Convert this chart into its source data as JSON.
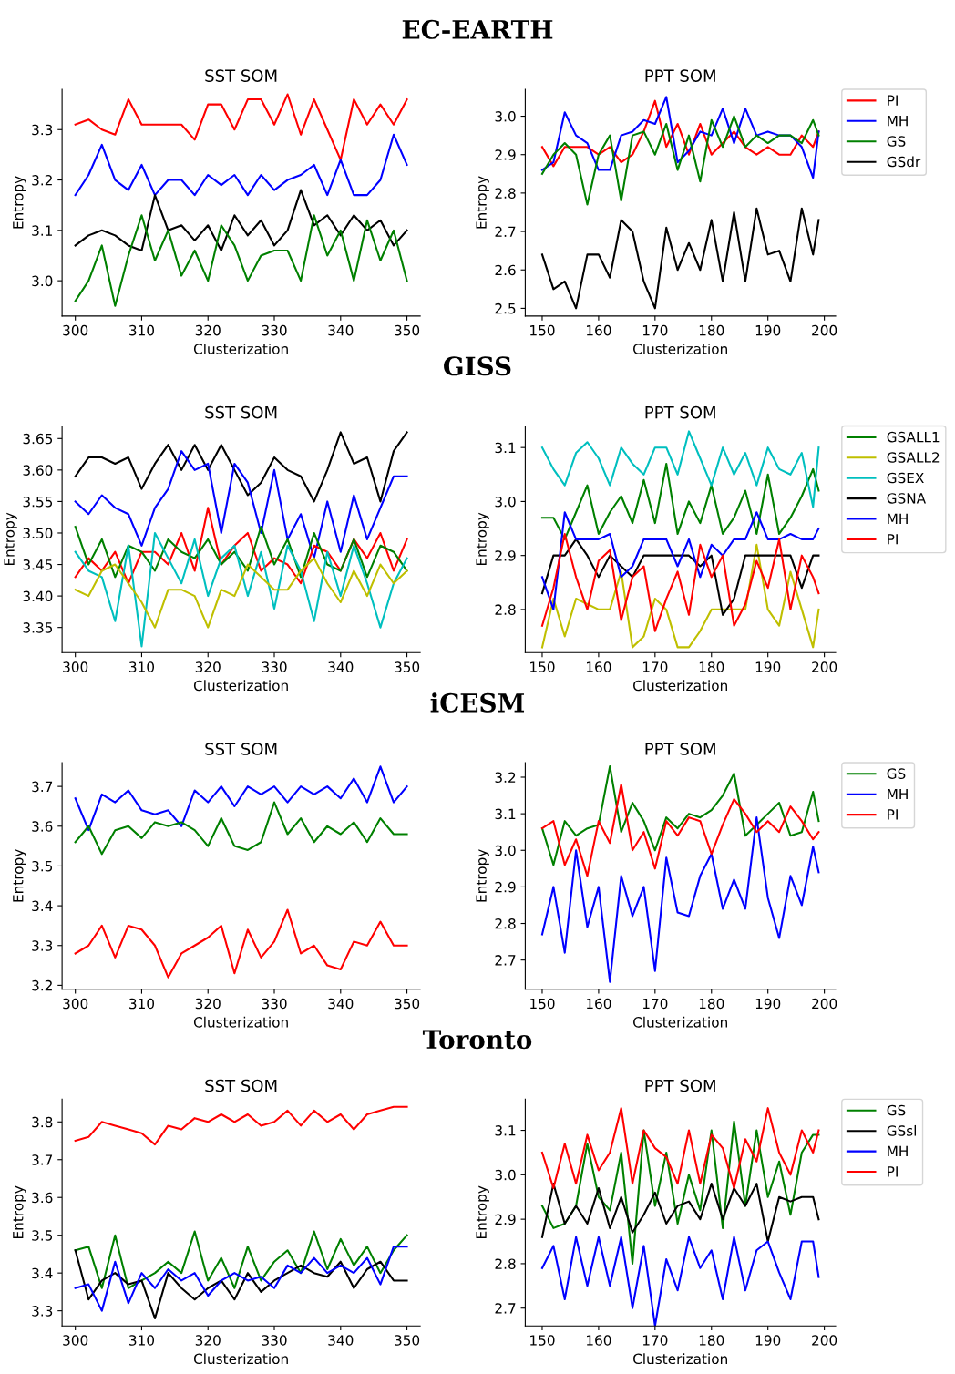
{
  "chart_data": [
    {
      "type": "line",
      "title": "SST SOM",
      "xlabel": "Clusterization",
      "ylabel": "Entropy",
      "annotations": [
        "EC-EARTH"
      ],
      "x": [
        300,
        302,
        304,
        306,
        308,
        310,
        312,
        314,
        316,
        318,
        320,
        322,
        324,
        326,
        328,
        330,
        332,
        334,
        336,
        338,
        340,
        342,
        344,
        346,
        348,
        350
      ],
      "xlim": [
        298,
        352
      ],
      "xticks": [
        300,
        310,
        320,
        330,
        340,
        350
      ],
      "ylim": [
        2.93,
        3.38
      ],
      "yticks": [
        {
          "value": 3.0,
          "label": "3.0"
        },
        3.1,
        3.2,
        3.3
      ],
      "grid": false,
      "legend": false,
      "series": [
        {
          "color": "#ff0000",
          "values": [
            3.31,
            3.32,
            3.3,
            3.29,
            3.36,
            3.31,
            3.31,
            3.31,
            3.31,
            3.28,
            3.35,
            3.35,
            3.3,
            3.36,
            3.36,
            3.31,
            3.37,
            3.29,
            3.36,
            3.3,
            3.24,
            3.36,
            3.31,
            3.35,
            3.31,
            3.36
          ]
        },
        {
          "color": "#0000ff",
          "values": [
            3.17,
            3.21,
            3.27,
            3.2,
            3.18,
            3.23,
            3.17,
            3.2,
            3.2,
            3.17,
            3.21,
            3.19,
            3.21,
            3.17,
            3.21,
            3.18,
            3.2,
            3.21,
            3.23,
            3.17,
            3.24,
            3.17,
            3.17,
            3.2,
            3.29,
            3.23
          ]
        },
        {
          "color": "#000000",
          "values": [
            3.07,
            3.09,
            3.1,
            3.09,
            3.07,
            3.06,
            3.17,
            3.1,
            3.11,
            3.08,
            3.11,
            3.06,
            3.13,
            3.09,
            3.12,
            3.07,
            3.1,
            3.18,
            3.11,
            3.13,
            3.09,
            3.13,
            3.1,
            3.12,
            3.07,
            3.1
          ]
        },
        {
          "color": "#008000",
          "values": [
            2.96,
            3.0,
            3.07,
            2.95,
            3.05,
            3.13,
            3.04,
            3.1,
            3.01,
            3.06,
            3.0,
            3.11,
            3.07,
            3.0,
            3.05,
            3.06,
            3.06,
            3.0,
            3.13,
            3.05,
            3.1,
            3.0,
            3.12,
            3.04,
            3.1,
            3.0
          ]
        }
      ]
    },
    {
      "type": "line",
      "title": "PPT SOM",
      "xlabel": "Clusterization",
      "ylabel": "Entropy",
      "x": [
        150,
        152,
        154,
        156,
        158,
        160,
        162,
        164,
        166,
        168,
        170,
        172,
        174,
        176,
        178,
        180,
        182,
        184,
        186,
        188,
        190,
        192,
        194,
        196,
        198,
        199
      ],
      "xlim": [
        147,
        202
      ],
      "xticks": [
        150,
        160,
        170,
        180,
        190,
        200
      ],
      "ylim": [
        2.48,
        3.07
      ],
      "yticks": [
        2.5,
        2.6,
        2.7,
        2.8,
        2.9,
        {
          "value": 3.0,
          "label": "3.0"
        }
      ],
      "grid": false,
      "legend": "right",
      "series": [
        {
          "name": "PI",
          "color": "#ff0000",
          "values": [
            2.92,
            2.87,
            2.92,
            2.92,
            2.92,
            2.9,
            2.92,
            2.88,
            2.9,
            2.96,
            3.04,
            2.92,
            2.98,
            2.9,
            2.98,
            2.9,
            2.93,
            2.96,
            2.92,
            2.9,
            2.92,
            2.9,
            2.9,
            2.95,
            2.92,
            2.96
          ]
        },
        {
          "name": "MH",
          "color": "#0000ff",
          "values": [
            2.86,
            2.88,
            3.01,
            2.95,
            2.93,
            2.86,
            2.86,
            2.95,
            2.96,
            2.99,
            2.98,
            3.05,
            2.88,
            2.91,
            2.96,
            2.95,
            3.02,
            2.93,
            3.02,
            2.95,
            2.96,
            2.95,
            2.95,
            2.92,
            2.84,
            2.96
          ]
        },
        {
          "name": "GS",
          "color": "#008000",
          "values": [
            2.85,
            2.9,
            2.93,
            2.9,
            2.77,
            2.9,
            2.95,
            2.78,
            2.95,
            2.96,
            2.9,
            2.98,
            2.86,
            2.95,
            2.83,
            2.99,
            2.92,
            3.0,
            2.92,
            2.95,
            2.93,
            2.95,
            2.95,
            2.93,
            2.99,
            2.95
          ]
        },
        {
          "name": "GSdr",
          "color": "#000000",
          "values": [
            2.64,
            2.55,
            2.57,
            2.5,
            2.64,
            2.64,
            2.58,
            2.73,
            2.7,
            2.57,
            2.5,
            2.71,
            2.6,
            2.67,
            2.6,
            2.73,
            2.57,
            2.75,
            2.57,
            2.76,
            2.64,
            2.65,
            2.57,
            2.76,
            2.64,
            2.73
          ]
        }
      ]
    },
    {
      "type": "line",
      "title": "SST SOM",
      "xlabel": "Clusterization",
      "ylabel": "Entropy",
      "annotations": [
        "GISS"
      ],
      "x": [
        300,
        302,
        304,
        306,
        308,
        310,
        312,
        314,
        316,
        318,
        320,
        322,
        324,
        326,
        328,
        330,
        332,
        334,
        336,
        338,
        340,
        342,
        344,
        346,
        348,
        350
      ],
      "xlim": [
        298,
        352
      ],
      "xticks": [
        300,
        310,
        320,
        330,
        340,
        350
      ],
      "ylim": [
        3.31,
        3.67
      ],
      "yticks": [
        3.35,
        {
          "value": 3.4,
          "label": "3.40"
        },
        3.45,
        {
          "value": 3.5,
          "label": "3.50"
        },
        3.55,
        {
          "value": 3.6,
          "label": "3.60"
        },
        3.65
      ],
      "grid": false,
      "legend": false,
      "series": [
        {
          "color": "#000000",
          "values": [
            3.59,
            3.62,
            3.62,
            3.61,
            3.62,
            3.57,
            3.61,
            3.64,
            3.6,
            3.64,
            3.6,
            3.64,
            3.6,
            3.56,
            3.58,
            3.62,
            3.6,
            3.59,
            3.55,
            3.6,
            3.66,
            3.61,
            3.62,
            3.55,
            3.63,
            3.66
          ]
        },
        {
          "color": "#0000ff",
          "values": [
            3.55,
            3.53,
            3.56,
            3.54,
            3.53,
            3.48,
            3.54,
            3.57,
            3.63,
            3.6,
            3.61,
            3.5,
            3.61,
            3.58,
            3.5,
            3.6,
            3.49,
            3.53,
            3.46,
            3.55,
            3.47,
            3.56,
            3.49,
            3.54,
            3.59,
            3.59
          ]
        },
        {
          "color": "#ff0000",
          "values": [
            3.43,
            3.46,
            3.44,
            3.47,
            3.42,
            3.47,
            3.47,
            3.45,
            3.5,
            3.44,
            3.54,
            3.45,
            3.48,
            3.5,
            3.44,
            3.46,
            3.45,
            3.42,
            3.48,
            3.47,
            3.44,
            3.49,
            3.46,
            3.5,
            3.44,
            3.49
          ]
        },
        {
          "color": "#008000",
          "values": [
            3.51,
            3.45,
            3.49,
            3.43,
            3.48,
            3.47,
            3.44,
            3.49,
            3.47,
            3.46,
            3.49,
            3.45,
            3.47,
            3.44,
            3.51,
            3.45,
            3.49,
            3.43,
            3.5,
            3.45,
            3.44,
            3.49,
            3.43,
            3.48,
            3.47,
            3.44
          ]
        },
        {
          "color": "#00bfbf",
          "values": [
            3.47,
            3.44,
            3.43,
            3.36,
            3.48,
            3.32,
            3.5,
            3.46,
            3.42,
            3.49,
            3.4,
            3.46,
            3.48,
            3.4,
            3.47,
            3.38,
            3.48,
            3.44,
            3.36,
            3.47,
            3.4,
            3.48,
            3.42,
            3.35,
            3.42,
            3.46
          ]
        },
        {
          "color": "#bfbf00",
          "values": [
            3.41,
            3.4,
            3.44,
            3.45,
            3.42,
            3.39,
            3.35,
            3.41,
            3.41,
            3.4,
            3.35,
            3.41,
            3.4,
            3.45,
            3.43,
            3.41,
            3.41,
            3.44,
            3.46,
            3.42,
            3.39,
            3.44,
            3.4,
            3.45,
            3.42,
            3.44
          ]
        }
      ]
    },
    {
      "type": "line",
      "title": "PPT SOM",
      "xlabel": "Clusterization",
      "ylabel": "Entropy",
      "x": [
        150,
        152,
        154,
        156,
        158,
        160,
        162,
        164,
        166,
        168,
        170,
        172,
        174,
        176,
        178,
        180,
        182,
        184,
        186,
        188,
        190,
        192,
        194,
        196,
        198,
        199
      ],
      "xlim": [
        147,
        202
      ],
      "xticks": [
        150,
        160,
        170,
        180,
        190,
        200
      ],
      "ylim": [
        2.72,
        3.14
      ],
      "yticks": [
        2.8,
        2.9,
        {
          "value": 3.0,
          "label": "3.0"
        },
        3.1
      ],
      "grid": false,
      "legend": "right",
      "series": [
        {
          "name": "GSALL1",
          "color": "#008000",
          "values": [
            2.97,
            2.97,
            2.93,
            2.98,
            3.03,
            2.94,
            2.98,
            3.01,
            2.96,
            3.04,
            2.96,
            3.07,
            2.94,
            3.0,
            2.96,
            3.03,
            2.94,
            2.97,
            3.02,
            2.94,
            3.05,
            2.94,
            2.97,
            3.01,
            3.06,
            3.02
          ]
        },
        {
          "name": "GSALL2",
          "color": "#bfbf00",
          "values": [
            2.73,
            2.82,
            2.75,
            2.82,
            2.81,
            2.8,
            2.8,
            2.87,
            2.73,
            2.75,
            2.82,
            2.8,
            2.73,
            2.73,
            2.76,
            2.8,
            2.8,
            2.8,
            2.8,
            2.92,
            2.8,
            2.77,
            2.87,
            2.8,
            2.73,
            2.8
          ]
        },
        {
          "name": "GSEX",
          "color": "#00bfbf",
          "values": [
            3.1,
            3.06,
            3.03,
            3.09,
            3.11,
            3.08,
            3.03,
            3.1,
            3.07,
            3.05,
            3.1,
            3.1,
            3.05,
            3.13,
            3.08,
            3.03,
            3.1,
            3.05,
            3.09,
            3.03,
            3.1,
            3.06,
            3.05,
            3.09,
            2.99,
            3.1
          ]
        },
        {
          "name": "GSNA",
          "color": "#000000",
          "values": [
            2.83,
            2.9,
            2.9,
            2.93,
            2.9,
            2.86,
            2.9,
            2.88,
            2.86,
            2.9,
            2.9,
            2.9,
            2.9,
            2.9,
            2.88,
            2.9,
            2.79,
            2.82,
            2.9,
            2.9,
            2.9,
            2.9,
            2.9,
            2.84,
            2.9,
            2.9
          ]
        },
        {
          "name": "MH",
          "color": "#0000ff",
          "values": [
            2.86,
            2.8,
            2.98,
            2.93,
            2.93,
            2.93,
            2.94,
            2.86,
            2.88,
            2.93,
            2.93,
            2.93,
            2.88,
            2.93,
            2.86,
            2.92,
            2.9,
            2.93,
            2.93,
            2.98,
            2.93,
            2.93,
            2.94,
            2.93,
            2.93,
            2.95
          ]
        },
        {
          "name": "PI",
          "color": "#ff0000",
          "values": [
            2.77,
            2.84,
            2.94,
            2.86,
            2.8,
            2.89,
            2.91,
            2.78,
            2.86,
            2.88,
            2.76,
            2.82,
            2.87,
            2.79,
            2.92,
            2.86,
            2.9,
            2.77,
            2.81,
            2.89,
            2.84,
            2.93,
            2.8,
            2.9,
            2.86,
            2.83
          ]
        }
      ]
    },
    {
      "type": "line",
      "title": "SST SOM",
      "xlabel": "Clusterization",
      "ylabel": "Entropy",
      "annotations": [
        "iCESM"
      ],
      "x": [
        300,
        302,
        304,
        306,
        308,
        310,
        312,
        314,
        316,
        318,
        320,
        322,
        324,
        326,
        328,
        330,
        332,
        334,
        336,
        338,
        340,
        342,
        344,
        346,
        348,
        350
      ],
      "xlim": [
        298,
        352
      ],
      "xticks": [
        300,
        310,
        320,
        330,
        340,
        350
      ],
      "ylim": [
        3.19,
        3.76
      ],
      "yticks": [
        3.2,
        3.3,
        3.4,
        3.5,
        3.6,
        3.7
      ],
      "grid": false,
      "legend": false,
      "series": [
        {
          "color": "#0000ff",
          "values": [
            3.67,
            3.59,
            3.68,
            3.66,
            3.69,
            3.64,
            3.63,
            3.64,
            3.6,
            3.69,
            3.66,
            3.7,
            3.65,
            3.7,
            3.68,
            3.7,
            3.66,
            3.7,
            3.68,
            3.7,
            3.67,
            3.72,
            3.66,
            3.75,
            3.66,
            3.7
          ]
        },
        {
          "color": "#008000",
          "values": [
            3.56,
            3.6,
            3.53,
            3.59,
            3.6,
            3.57,
            3.61,
            3.6,
            3.61,
            3.59,
            3.55,
            3.62,
            3.55,
            3.54,
            3.56,
            3.66,
            3.58,
            3.62,
            3.56,
            3.6,
            3.58,
            3.61,
            3.56,
            3.62,
            3.58,
            3.58
          ]
        },
        {
          "color": "#ff0000",
          "values": [
            3.28,
            3.3,
            3.35,
            3.27,
            3.35,
            3.34,
            3.3,
            3.22,
            3.28,
            3.3,
            3.32,
            3.35,
            3.23,
            3.34,
            3.27,
            3.31,
            3.39,
            3.28,
            3.3,
            3.25,
            3.24,
            3.31,
            3.3,
            3.36,
            3.3,
            3.3
          ]
        }
      ]
    },
    {
      "type": "line",
      "title": "PPT SOM",
      "xlabel": "Clusterization",
      "ylabel": "Entropy",
      "x": [
        150,
        152,
        154,
        156,
        158,
        160,
        162,
        164,
        166,
        168,
        170,
        172,
        174,
        176,
        178,
        180,
        182,
        184,
        186,
        188,
        190,
        192,
        194,
        196,
        198,
        199
      ],
      "xlim": [
        147,
        202
      ],
      "xticks": [
        150,
        160,
        170,
        180,
        190,
        200
      ],
      "ylim": [
        2.62,
        3.24
      ],
      "yticks": [
        2.7,
        2.8,
        2.9,
        {
          "value": 3.0,
          "label": "3.0"
        },
        3.1,
        3.2
      ],
      "grid": false,
      "legend": "right",
      "series": [
        {
          "name": "GS",
          "color": "#008000",
          "values": [
            3.06,
            2.96,
            3.08,
            3.04,
            3.06,
            3.07,
            3.23,
            3.05,
            3.13,
            3.08,
            3.0,
            3.09,
            3.06,
            3.1,
            3.09,
            3.11,
            3.15,
            3.21,
            3.04,
            3.07,
            3.1,
            3.13,
            3.04,
            3.05,
            3.16,
            3.08
          ]
        },
        {
          "name": "MH",
          "color": "#0000ff",
          "values": [
            2.77,
            2.9,
            2.72,
            3.0,
            2.79,
            2.9,
            2.64,
            2.93,
            2.82,
            2.9,
            2.67,
            2.98,
            2.83,
            2.82,
            2.93,
            2.99,
            2.84,
            2.92,
            2.84,
            3.09,
            2.87,
            2.76,
            2.93,
            2.85,
            3.01,
            2.94
          ]
        },
        {
          "name": "PI",
          "color": "#ff0000",
          "values": [
            3.06,
            3.08,
            2.96,
            3.03,
            2.93,
            3.08,
            3.02,
            3.18,
            3.0,
            3.05,
            2.95,
            3.08,
            3.04,
            3.09,
            3.08,
            2.99,
            3.07,
            3.14,
            3.1,
            3.05,
            3.08,
            3.05,
            3.12,
            3.08,
            3.03,
            3.05
          ]
        }
      ]
    },
    {
      "type": "line",
      "title": "SST SOM",
      "xlabel": "Clusterization",
      "ylabel": "Entropy",
      "annotations": [
        "Toronto"
      ],
      "x": [
        300,
        302,
        304,
        306,
        308,
        310,
        312,
        314,
        316,
        318,
        320,
        322,
        324,
        326,
        328,
        330,
        332,
        334,
        336,
        338,
        340,
        342,
        344,
        346,
        348,
        350
      ],
      "xlim": [
        298,
        352
      ],
      "xticks": [
        300,
        310,
        320,
        330,
        340,
        350
      ],
      "ylim": [
        3.26,
        3.86
      ],
      "yticks": [
        3.3,
        3.4,
        3.5,
        3.6,
        3.7,
        3.8
      ],
      "grid": false,
      "legend": false,
      "series": [
        {
          "color": "#ff0000",
          "values": [
            3.75,
            3.76,
            3.8,
            3.79,
            3.78,
            3.77,
            3.74,
            3.79,
            3.78,
            3.81,
            3.8,
            3.82,
            3.8,
            3.82,
            3.79,
            3.8,
            3.83,
            3.79,
            3.83,
            3.8,
            3.82,
            3.78,
            3.82,
            3.83,
            3.84,
            3.84
          ]
        },
        {
          "color": "#008000",
          "values": [
            3.46,
            3.47,
            3.36,
            3.5,
            3.36,
            3.38,
            3.4,
            3.43,
            3.4,
            3.51,
            3.38,
            3.44,
            3.36,
            3.47,
            3.38,
            3.43,
            3.46,
            3.4,
            3.51,
            3.41,
            3.49,
            3.42,
            3.47,
            3.4,
            3.46,
            3.5
          ]
        },
        {
          "color": "#000000",
          "values": [
            3.46,
            3.33,
            3.38,
            3.4,
            3.37,
            3.38,
            3.28,
            3.4,
            3.36,
            3.33,
            3.36,
            3.38,
            3.33,
            3.4,
            3.35,
            3.38,
            3.4,
            3.42,
            3.4,
            3.39,
            3.43,
            3.36,
            3.41,
            3.43,
            3.38,
            3.38
          ]
        },
        {
          "color": "#0000ff",
          "values": [
            3.36,
            3.37,
            3.3,
            3.43,
            3.32,
            3.4,
            3.36,
            3.41,
            3.38,
            3.4,
            3.34,
            3.38,
            3.4,
            3.38,
            3.39,
            3.36,
            3.42,
            3.4,
            3.44,
            3.4,
            3.42,
            3.4,
            3.44,
            3.37,
            3.47,
            3.47
          ]
        }
      ]
    },
    {
      "type": "line",
      "title": "PPT SOM",
      "xlabel": "Clusterization",
      "ylabel": "Entropy",
      "x": [
        150,
        152,
        154,
        156,
        158,
        160,
        162,
        164,
        166,
        168,
        170,
        172,
        174,
        176,
        178,
        180,
        182,
        184,
        186,
        188,
        190,
        192,
        194,
        196,
        198,
        199
      ],
      "xlim": [
        147,
        202
      ],
      "xticks": [
        150,
        160,
        170,
        180,
        190,
        200
      ],
      "ylim": [
        2.66,
        3.17
      ],
      "yticks": [
        2.7,
        2.8,
        2.9,
        {
          "value": 3.0,
          "label": "3.0"
        },
        3.1
      ],
      "grid": false,
      "legend": "right",
      "series": [
        {
          "name": "GS",
          "color": "#008000",
          "values": [
            2.93,
            2.88,
            2.89,
            2.93,
            3.07,
            2.95,
            2.92,
            3.05,
            2.8,
            3.1,
            2.93,
            3.05,
            2.89,
            3.0,
            2.92,
            3.1,
            2.88,
            3.12,
            2.93,
            3.1,
            2.95,
            3.03,
            2.91,
            3.05,
            3.09,
            3.09
          ]
        },
        {
          "name": "GSsl",
          "color": "#000000",
          "values": [
            2.86,
            2.98,
            2.89,
            2.93,
            2.89,
            2.97,
            2.88,
            2.95,
            2.87,
            2.91,
            2.96,
            2.89,
            2.93,
            2.94,
            2.9,
            2.98,
            2.9,
            2.97,
            2.93,
            2.98,
            2.85,
            2.95,
            2.94,
            2.95,
            2.95,
            2.9
          ]
        },
        {
          "name": "MH",
          "color": "#0000ff",
          "values": [
            2.79,
            2.84,
            2.72,
            2.86,
            2.75,
            2.86,
            2.75,
            2.86,
            2.7,
            2.84,
            2.66,
            2.81,
            2.74,
            2.86,
            2.79,
            2.83,
            2.72,
            2.86,
            2.74,
            2.83,
            2.85,
            2.78,
            2.72,
            2.85,
            2.85,
            2.77
          ]
        },
        {
          "name": "PI",
          "color": "#ff0000",
          "values": [
            3.05,
            2.97,
            3.07,
            2.98,
            3.09,
            3.01,
            3.05,
            3.15,
            2.98,
            3.1,
            3.06,
            3.04,
            2.98,
            3.1,
            2.98,
            3.09,
            3.06,
            2.97,
            3.08,
            3.03,
            3.15,
            3.05,
            3.0,
            3.1,
            3.05,
            3.1
          ]
        }
      ]
    }
  ]
}
